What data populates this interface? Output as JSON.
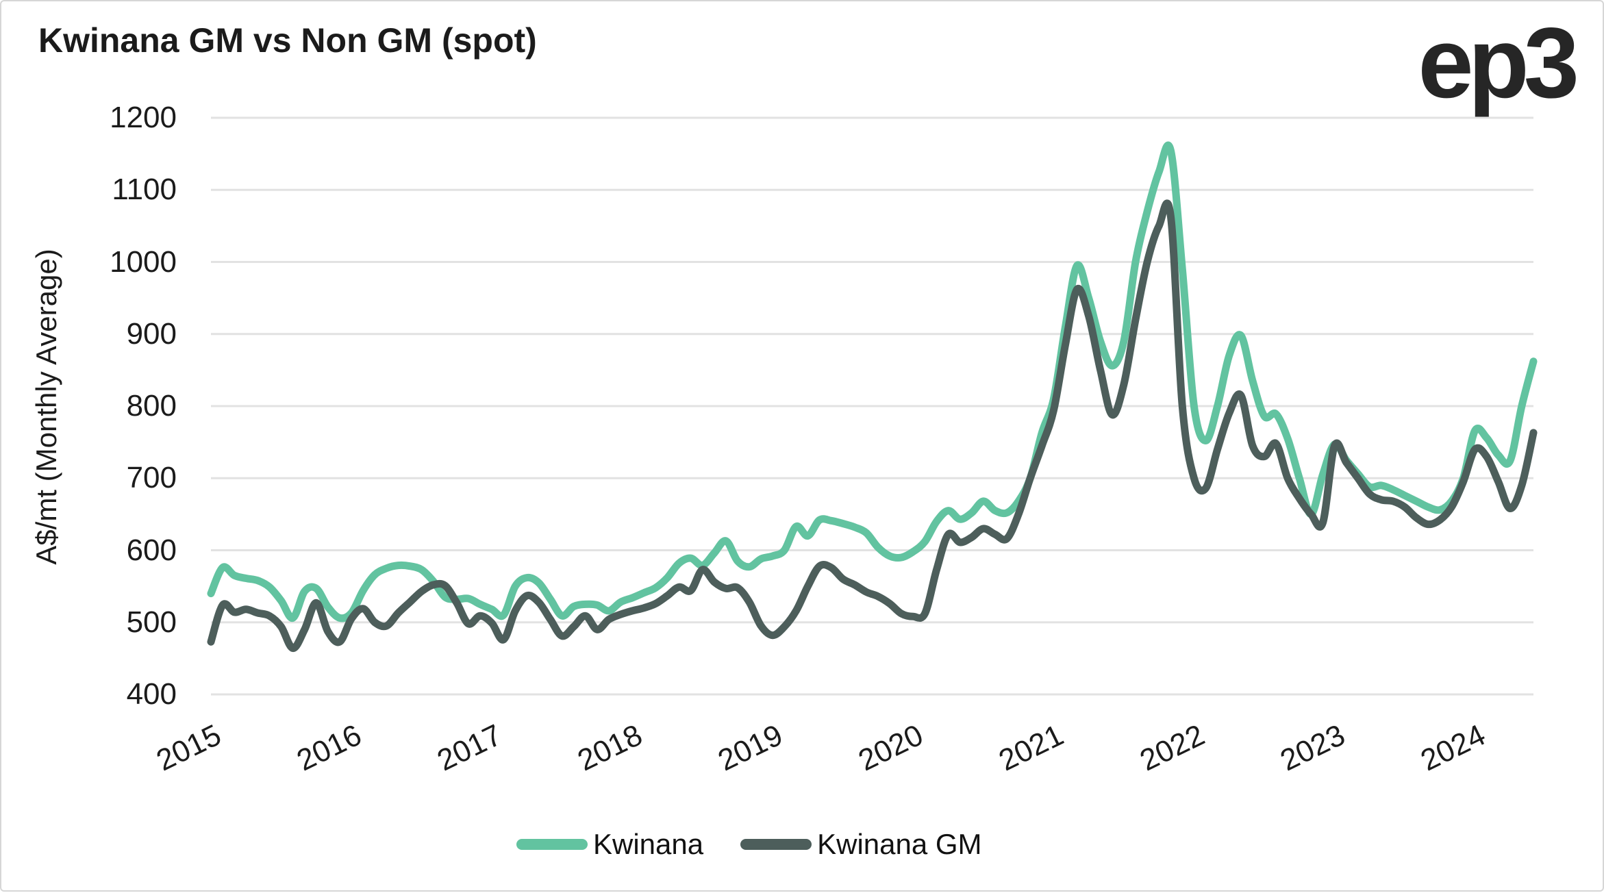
{
  "title": "Kwinana GM vs Non GM (spot)",
  "logo_text": "ep3",
  "chart_data": {
    "type": "line",
    "title": "Kwinana GM vs Non GM (spot)",
    "xlabel": "",
    "ylabel": "A$/mt (Monthly Average)",
    "ylim": [
      400,
      1200
    ],
    "ytick_interval": 100,
    "yticks": [
      400,
      500,
      600,
      700,
      800,
      900,
      1000,
      1100,
      1200
    ],
    "xticks": [
      "2015",
      "2016",
      "2017",
      "2018",
      "2019",
      "2020",
      "2021",
      "2022",
      "2023",
      "2024"
    ],
    "frequency": "monthly",
    "x_start": "2015-01",
    "x_end": "2024-06",
    "grid": "horizontal-only",
    "grid_color": "#e2e2e2",
    "legend_position": "bottom-center",
    "series": [
      {
        "name": "Kwinana",
        "color": "#62c3a0",
        "values": [
          540,
          576,
          565,
          561,
          558,
          549,
          530,
          506,
          543,
          547,
          521,
          506,
          513,
          544,
          566,
          575,
          579,
          578,
          573,
          557,
          535,
          532,
          533,
          525,
          518,
          510,
          550,
          562,
          555,
          532,
          509,
          522,
          525,
          524,
          516,
          528,
          534,
          541,
          548,
          562,
          582,
          589,
          579,
          596,
          613,
          585,
          577,
          588,
          592,
          600,
          633,
          620,
          642,
          641,
          637,
          632,
          624,
          604,
          592,
          590,
          598,
          612,
          640,
          655,
          643,
          652,
          668,
          655,
          652,
          668,
          700,
          763,
          810,
          910,
          995,
          950,
          890,
          856,
          890,
          1000,
          1070,
          1125,
          1155,
          990,
          800,
          752,
          800,
          870,
          898,
          835,
          786,
          789,
          755,
          700,
          650,
          705,
          747,
          725,
          706,
          688,
          690,
          684,
          676,
          668,
          660,
          656,
          668,
          700,
          766,
          756,
          732,
          724,
          800,
          862
        ]
      },
      {
        "name": "Kwinana GM",
        "color": "#4d5e5b",
        "values": [
          473,
          524,
          514,
          518,
          513,
          509,
          494,
          464,
          490,
          527,
          487,
          473,
          505,
          519,
          500,
          495,
          513,
          528,
          543,
          552,
          551,
          527,
          498,
          509,
          499,
          476,
          516,
          537,
          528,
          504,
          481,
          494,
          509,
          490,
          504,
          511,
          516,
          520,
          526,
          537,
          549,
          544,
          573,
          556,
          547,
          548,
          528,
          495,
          482,
          494,
          516,
          550,
          578,
          576,
          560,
          552,
          542,
          536,
          526,
          512,
          508,
          512,
          573,
          622,
          611,
          618,
          630,
          622,
          616,
          650,
          700,
          745,
          794,
          885,
          962,
          925,
          850,
          788,
          830,
          920,
          1000,
          1050,
          1064,
          800,
          700,
          686,
          740,
          790,
          815,
          745,
          730,
          748,
          700,
          672,
          650,
          638,
          745,
          722,
          700,
          678,
          670,
          668,
          660,
          645,
          636,
          642,
          660,
          695,
          740,
          730,
          695,
          658,
          690,
          763
        ]
      }
    ]
  }
}
